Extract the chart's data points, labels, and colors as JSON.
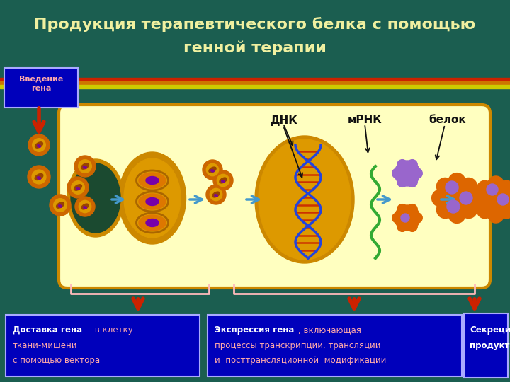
{
  "bg_color": "#1b5e50",
  "title_line1": "Продукция терапевтического белка с помощью",
  "title_line2": "генной терапии",
  "title_color": "#f0f0a0",
  "title_fontsize": 16,
  "stripe_colors": [
    "#cc2200",
    "#cc7700",
    "#cccc00"
  ],
  "cell_fill": "#ffffc0",
  "cell_border": "#cc8800",
  "label_box_color": "#0000bb",
  "label_text_pink": "#ffaaaa",
  "label_text_white": "#ffffff",
  "intro_text": "Введение\nгена",
  "dnk_label": "ДНК",
  "mrna_label": "мРНК",
  "protein_label": "белок",
  "arrow_red": "#cc2200",
  "arrow_blue": "#4499cc",
  "bracket_color": "#ffbbbb",
  "virus_outer": "#cc6600",
  "virus_inner": "#dd9900",
  "virus_core": "#994400",
  "nucleus_outer": "#dd9900",
  "nucleus_inner": "#cc7700",
  "dna_color": "#2244dd",
  "dna_bar_color": "#cc3300",
  "mrna_color": "#33aa33",
  "protein_purple": "#9966cc",
  "protein_orange": "#dd6600"
}
